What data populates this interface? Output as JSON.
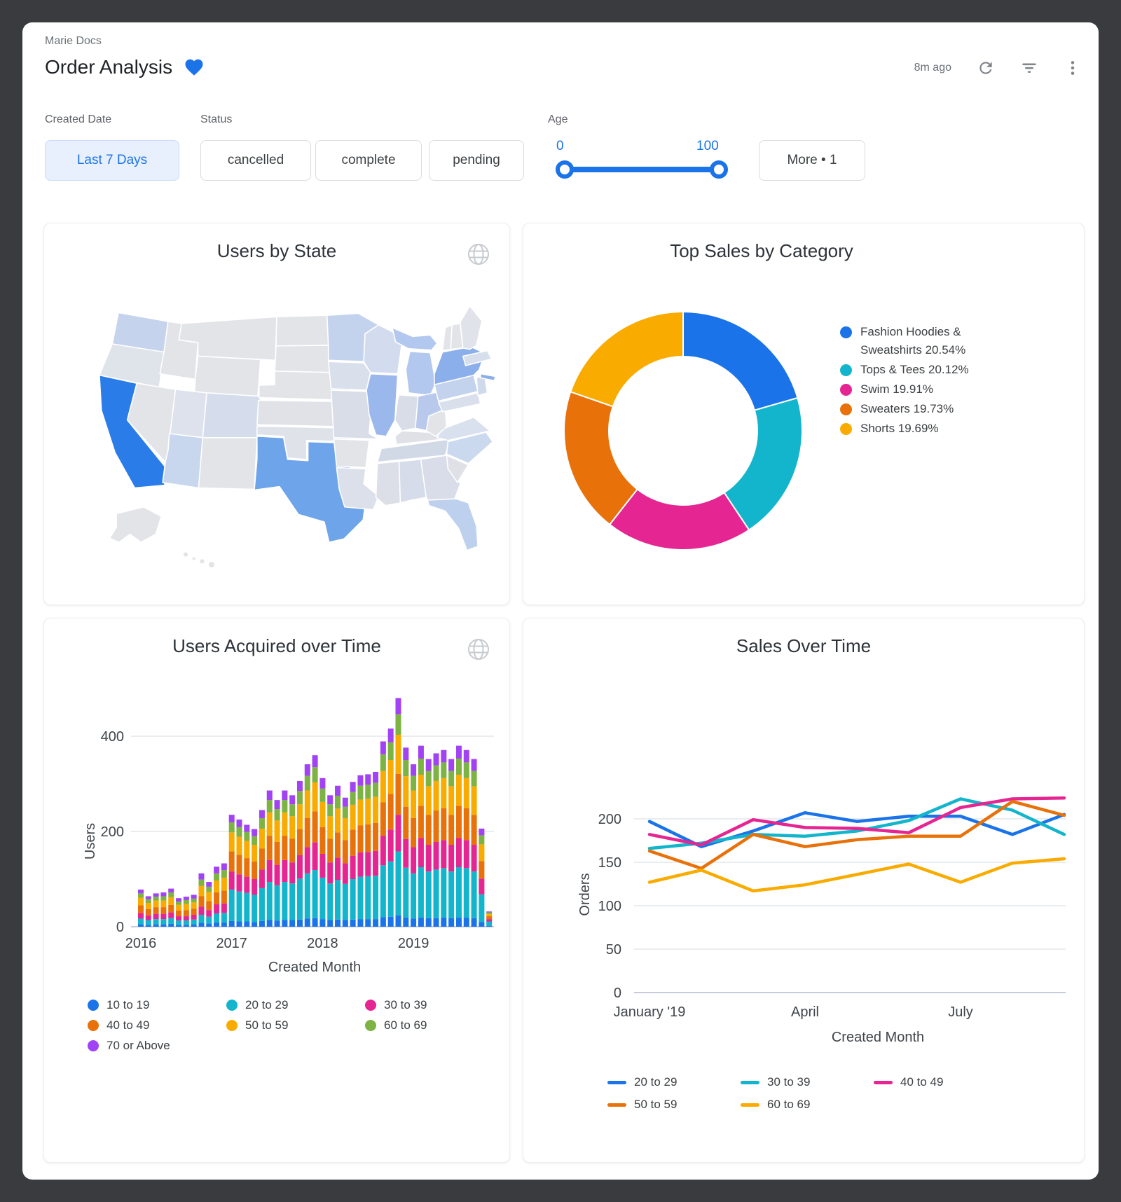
{
  "header": {
    "breadcrumb": "Marie Docs",
    "title": "Order Analysis",
    "last_refreshed": "8m ago",
    "icons": [
      "heart-icon",
      "refresh-icon",
      "filter-icon",
      "kebab-menu-icon"
    ]
  },
  "filters": {
    "created_date": {
      "label": "Created Date",
      "value": "Last 7 Days"
    },
    "status": {
      "label": "Status",
      "options": [
        "cancelled",
        "complete",
        "pending"
      ]
    },
    "age": {
      "label": "Age",
      "min": "0",
      "max": "100"
    },
    "more": {
      "label": "More • 1"
    }
  },
  "colors": {
    "accent": "#1a73e8",
    "palette": [
      "#1a73e8",
      "#12b5cb",
      "#e52592",
      "#e8710a",
      "#f9ab00",
      "#7cb342",
      "#a142f4"
    ]
  },
  "cards": {
    "users_by_state": {
      "title": "Users by State",
      "icon": "globe-icon",
      "chart_data": {
        "type": "heatmap",
        "subtype": "choropleth-usa",
        "note": "states shaded by user count, California highest",
        "default_color": "#e2e4e8",
        "state_colors": {
          "CA": "#2a7ce9",
          "TX": "#6da4ea",
          "NY": "#8aafea",
          "IL": "#9bb8ec",
          "OH": "#b8c9ec",
          "MI": "#b3c8ee",
          "FL": "#bdd0ee",
          "PA": "#c3d2ed",
          "MN": "#c4d3ed",
          "WA": "#c5d3ec",
          "AZ": "#c9d7ee",
          "NC": "#cbd9ef",
          "WI": "#d3dcee",
          "CO": "#d5ddec",
          "NJ": "#d0daed",
          "MA": "#d7deec",
          "VA": "#d9e0ee",
          "MD": "#d9dfeb",
          "IA": "#d9e0ec",
          "MO": "#d8dde8",
          "TN": "#d2d9e6",
          "AL": "#d6dcea",
          "GA": "#d8dde9",
          "MS": "#dcdfe7",
          "LA": "#dbe0ea",
          "IN": "#d8dde8",
          "UT": "#dde2ec",
          "OK": "#dfe2e9",
          "KS": "#e0e2e7",
          "KY": "#dfe1e6",
          "SC": "#dfe1e6",
          "OR": "#dfe3ea",
          "ME": "#e0e3e9"
        }
      }
    },
    "top_sales": {
      "title": "Top Sales by Category",
      "chart_data": {
        "type": "pie",
        "donut": true,
        "start_angle_deg": -90,
        "legend_position": "right",
        "slices": [
          {
            "label": "Fashion Hoodies & Sweatshirts",
            "pct_label": "20.54%",
            "value": 20.54,
            "color": "#1a73e8"
          },
          {
            "label": "Tops & Tees",
            "pct_label": "20.12%",
            "value": 20.12,
            "color": "#12b5cb"
          },
          {
            "label": "Swim",
            "pct_label": "19.91%",
            "value": 19.91,
            "color": "#e52592"
          },
          {
            "label": "Sweaters",
            "pct_label": "19.73%",
            "value": 19.73,
            "color": "#e8710a"
          },
          {
            "label": "Shorts",
            "pct_label": "19.69%",
            "value": 19.69,
            "color": "#f9ab00"
          }
        ]
      }
    },
    "users_over_time": {
      "title": "Users Acquired over Time",
      "icon": "globe-icon",
      "xlabel": "Created Month",
      "ylabel": "Users",
      "chart_data": {
        "type": "bar",
        "stacked": true,
        "yticks": [
          0,
          200,
          400
        ],
        "ylim": [
          0,
          500
        ],
        "xticks": [
          {
            "label": "2016",
            "index": 0
          },
          {
            "label": "2017",
            "index": 12
          },
          {
            "label": "2018",
            "index": 24
          },
          {
            "label": "2019",
            "index": 36
          }
        ],
        "categories": [
          "2016-01",
          "2016-02",
          "2016-03",
          "2016-04",
          "2016-05",
          "2016-06",
          "2016-07",
          "2016-08",
          "2016-09",
          "2016-10",
          "2016-11",
          "2016-12",
          "2017-01",
          "2017-02",
          "2017-03",
          "2017-04",
          "2017-05",
          "2017-06",
          "2017-07",
          "2017-08",
          "2017-09",
          "2017-10",
          "2017-11",
          "2017-12",
          "2018-01",
          "2018-02",
          "2018-03",
          "2018-04",
          "2018-05",
          "2018-06",
          "2018-07",
          "2018-08",
          "2018-09",
          "2018-10",
          "2018-11",
          "2018-12",
          "2019-01",
          "2019-02",
          "2019-03",
          "2019-04",
          "2019-05",
          "2019-06",
          "2019-07",
          "2019-08",
          "2019-09",
          "2019-10",
          "2019-11"
        ],
        "series": [
          {
            "name": "10 to 19",
            "color": "#1a73e8",
            "values": [
              5,
              4,
              5,
              5,
              6,
              4,
              4,
              5,
              8,
              7,
              9,
              9,
              12,
              11,
              11,
              10,
              12,
              14,
              13,
              14,
              14,
              15,
              17,
              18,
              16,
              14,
              15,
              14,
              15,
              16,
              16,
              16,
              20,
              21,
              24,
              19,
              17,
              19,
              18,
              18,
              19,
              18,
              19,
              19,
              18,
              10,
              2
            ]
          },
          {
            "name": "20 to 29",
            "color": "#12b5cb",
            "values": [
              12,
              10,
              11,
              11,
              12,
              9,
              9,
              10,
              17,
              14,
              19,
              20,
              66,
              63,
              60,
              57,
              69,
              80,
              74,
              80,
              77,
              86,
              95,
              101,
              87,
              77,
              83,
              76,
              85,
              89,
              90,
              91,
              109,
              116,
              134,
              105,
              95,
              106,
              98,
              102,
              104,
              98,
              106,
              104,
              98,
              58,
              9
            ]
          },
          {
            "name": "30 to 39",
            "color": "#e52592",
            "values": [
              12,
              10,
              11,
              11,
              12,
              9,
              9,
              10,
              17,
              14,
              19,
              20,
              38,
              36,
              34,
              33,
              39,
              46,
              43,
              46,
              44,
              49,
              55,
              58,
              50,
              44,
              47,
              43,
              49,
              51,
              51,
              52,
              62,
              67,
              77,
              60,
              55,
              61,
              56,
              58,
              59,
              56,
              61,
              59,
              56,
              33,
              5
            ]
          },
          {
            "name": "40 to 49",
            "color": "#e8710a",
            "values": [
              16,
              13,
              14,
              14,
              16,
              12,
              13,
              13,
              22,
              19,
              25,
              27,
              42,
              41,
              39,
              37,
              44,
              51,
              48,
              51,
              50,
              55,
              61,
              65,
              56,
              50,
              53,
              49,
              55,
              57,
              58,
              59,
              70,
              75,
              86,
              68,
              61,
              68,
              63,
              66,
              67,
              63,
              68,
              67,
              63,
              37,
              6
            ]
          },
          {
            "name": "50 to 59",
            "color": "#f9ab00",
            "values": [
              16,
              13,
              14,
              14,
              16,
              12,
              13,
              13,
              22,
              19,
              25,
              27,
              40,
              38,
              36,
              35,
              42,
              49,
              45,
              49,
              47,
              52,
              58,
              61,
              53,
              47,
              50,
              46,
              52,
              54,
              54,
              55,
              66,
              71,
              82,
              64,
              58,
              65,
              60,
              62,
              63,
              60,
              65,
              63,
              60,
              35,
              5
            ]
          },
          {
            "name": "60 to 69",
            "color": "#7cb342",
            "values": [
              9,
              8,
              8,
              9,
              10,
              7,
              8,
              8,
              13,
              11,
              15,
              16,
              21,
              20,
              19,
              18,
              22,
              26,
              24,
              26,
              25,
              28,
              31,
              32,
              28,
              25,
              27,
              24,
              27,
              29,
              29,
              29,
              35,
              37,
              43,
              34,
              31,
              34,
              32,
              33,
              33,
              32,
              34,
              33,
              32,
              19,
              3
            ]
          },
          {
            "name": "70 or Above",
            "color": "#a142f4",
            "values": [
              8,
              6,
              7,
              8,
              8,
              7,
              7,
              8,
              13,
              10,
              14,
              14,
              16,
              16,
              15,
              15,
              17,
              20,
              19,
              20,
              19,
              21,
              24,
              25,
              22,
              19,
              21,
              19,
              21,
              22,
              22,
              23,
              27,
              29,
              34,
              26,
              24,
              27,
              25,
              25,
              26,
              25,
              27,
              26,
              25,
              14,
              2
            ]
          }
        ]
      }
    },
    "sales_over_time": {
      "title": "Sales Over Time",
      "xlabel": "Created Month",
      "ylabel": "Orders",
      "chart_data": {
        "type": "line",
        "yticks": [
          0,
          50,
          100,
          150,
          200
        ],
        "ylim": [
          0,
          235
        ],
        "xticks": [
          {
            "label": "January '19",
            "index": 0
          },
          {
            "label": "April",
            "index": 3
          },
          {
            "label": "July",
            "index": 6
          }
        ],
        "x": [
          "2019-01",
          "2019-02",
          "2019-03",
          "2019-04",
          "2019-05",
          "2019-06",
          "2019-07",
          "2019-08",
          "2019-09"
        ],
        "series": [
          {
            "name": "20 to 29",
            "color": "#1a73e8",
            "values": [
              197,
              168,
              186,
              207,
              197,
              203,
              203,
              182,
              205
            ]
          },
          {
            "name": "30 to 39",
            "color": "#12b5cb",
            "values": [
              166,
              172,
              182,
              180,
              186,
              198,
              223,
              210,
              182
            ]
          },
          {
            "name": "40 to 49",
            "color": "#e52592",
            "values": [
              182,
              170,
              199,
              190,
              189,
              184,
              213,
              223,
              224
            ]
          },
          {
            "name": "50 to 59",
            "color": "#e8710a",
            "values": [
              163,
              143,
              182,
              168,
              176,
              180,
              180,
              220,
              204
            ]
          },
          {
            "name": "60 to 69",
            "color": "#f9ab00",
            "values": [
              127,
              141,
              117,
              124,
              136,
              148,
              127,
              149,
              154
            ]
          }
        ]
      }
    }
  }
}
